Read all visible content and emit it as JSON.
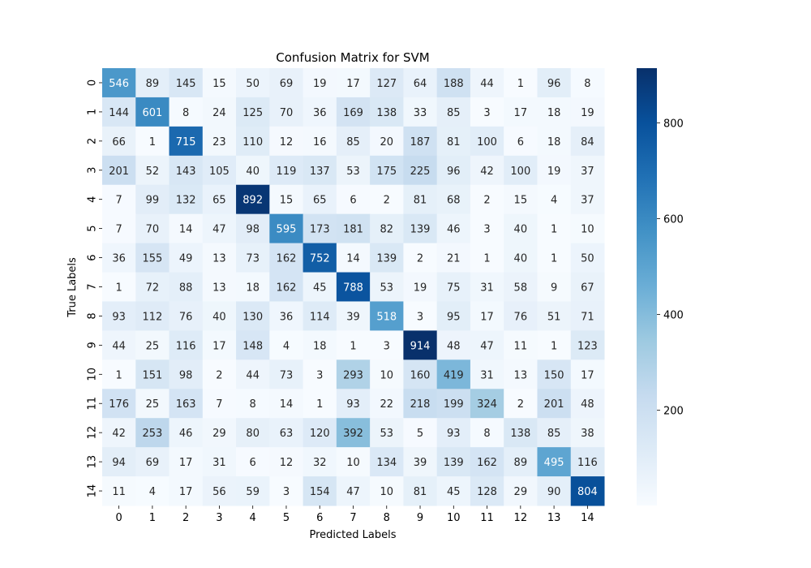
{
  "chart_data": {
    "type": "heatmap",
    "title": "Confusion Matrix for SVM",
    "xlabel": "Predicted Labels",
    "ylabel": "True Labels",
    "x_categories": [
      "0",
      "1",
      "2",
      "3",
      "4",
      "5",
      "6",
      "7",
      "8",
      "9",
      "10",
      "11",
      "12",
      "13",
      "14"
    ],
    "y_categories": [
      "0",
      "1",
      "2",
      "3",
      "4",
      "5",
      "6",
      "7",
      "8",
      "9",
      "10",
      "11",
      "12",
      "13",
      "14"
    ],
    "values": [
      [
        546,
        89,
        145,
        15,
        50,
        69,
        19,
        17,
        127,
        64,
        188,
        44,
        1,
        96,
        8
      ],
      [
        144,
        601,
        8,
        24,
        125,
        70,
        36,
        169,
        138,
        33,
        85,
        3,
        17,
        18,
        19
      ],
      [
        66,
        1,
        715,
        23,
        110,
        12,
        16,
        85,
        20,
        187,
        81,
        100,
        6,
        18,
        84
      ],
      [
        201,
        52,
        143,
        105,
        40,
        119,
        137,
        53,
        175,
        225,
        96,
        42,
        100,
        19,
        37
      ],
      [
        7,
        99,
        132,
        65,
        892,
        15,
        65,
        6,
        2,
        81,
        68,
        2,
        15,
        4,
        37
      ],
      [
        7,
        70,
        14,
        47,
        98,
        595,
        173,
        181,
        82,
        139,
        46,
        3,
        40,
        1,
        10
      ],
      [
        36,
        155,
        49,
        13,
        73,
        162,
        752,
        14,
        139,
        2,
        21,
        1,
        40,
        1,
        50
      ],
      [
        1,
        72,
        88,
        13,
        18,
        162,
        45,
        788,
        53,
        19,
        75,
        31,
        58,
        9,
        67
      ],
      [
        93,
        112,
        76,
        40,
        130,
        36,
        114,
        39,
        518,
        3,
        95,
        17,
        76,
        51,
        71
      ],
      [
        44,
        25,
        116,
        17,
        148,
        4,
        18,
        1,
        3,
        914,
        48,
        47,
        11,
        1,
        123
      ],
      [
        1,
        151,
        98,
        2,
        44,
        73,
        3,
        293,
        10,
        160,
        419,
        31,
        13,
        150,
        17
      ],
      [
        176,
        25,
        163,
        7,
        8,
        14,
        1,
        93,
        22,
        218,
        199,
        324,
        2,
        201,
        48
      ],
      [
        42,
        253,
        46,
        29,
        80,
        63,
        120,
        392,
        53,
        5,
        93,
        8,
        138,
        85,
        38
      ],
      [
        94,
        69,
        17,
        31,
        6,
        12,
        32,
        10,
        134,
        39,
        139,
        162,
        89,
        495,
        116
      ],
      [
        11,
        4,
        17,
        56,
        59,
        3,
        154,
        47,
        10,
        81,
        45,
        128,
        29,
        90,
        804
      ]
    ],
    "colormap": "Blues",
    "color_range": [
      1,
      914
    ],
    "colorbar_ticks": [
      200,
      400,
      600,
      800
    ],
    "annotations": true,
    "grid": false
  }
}
